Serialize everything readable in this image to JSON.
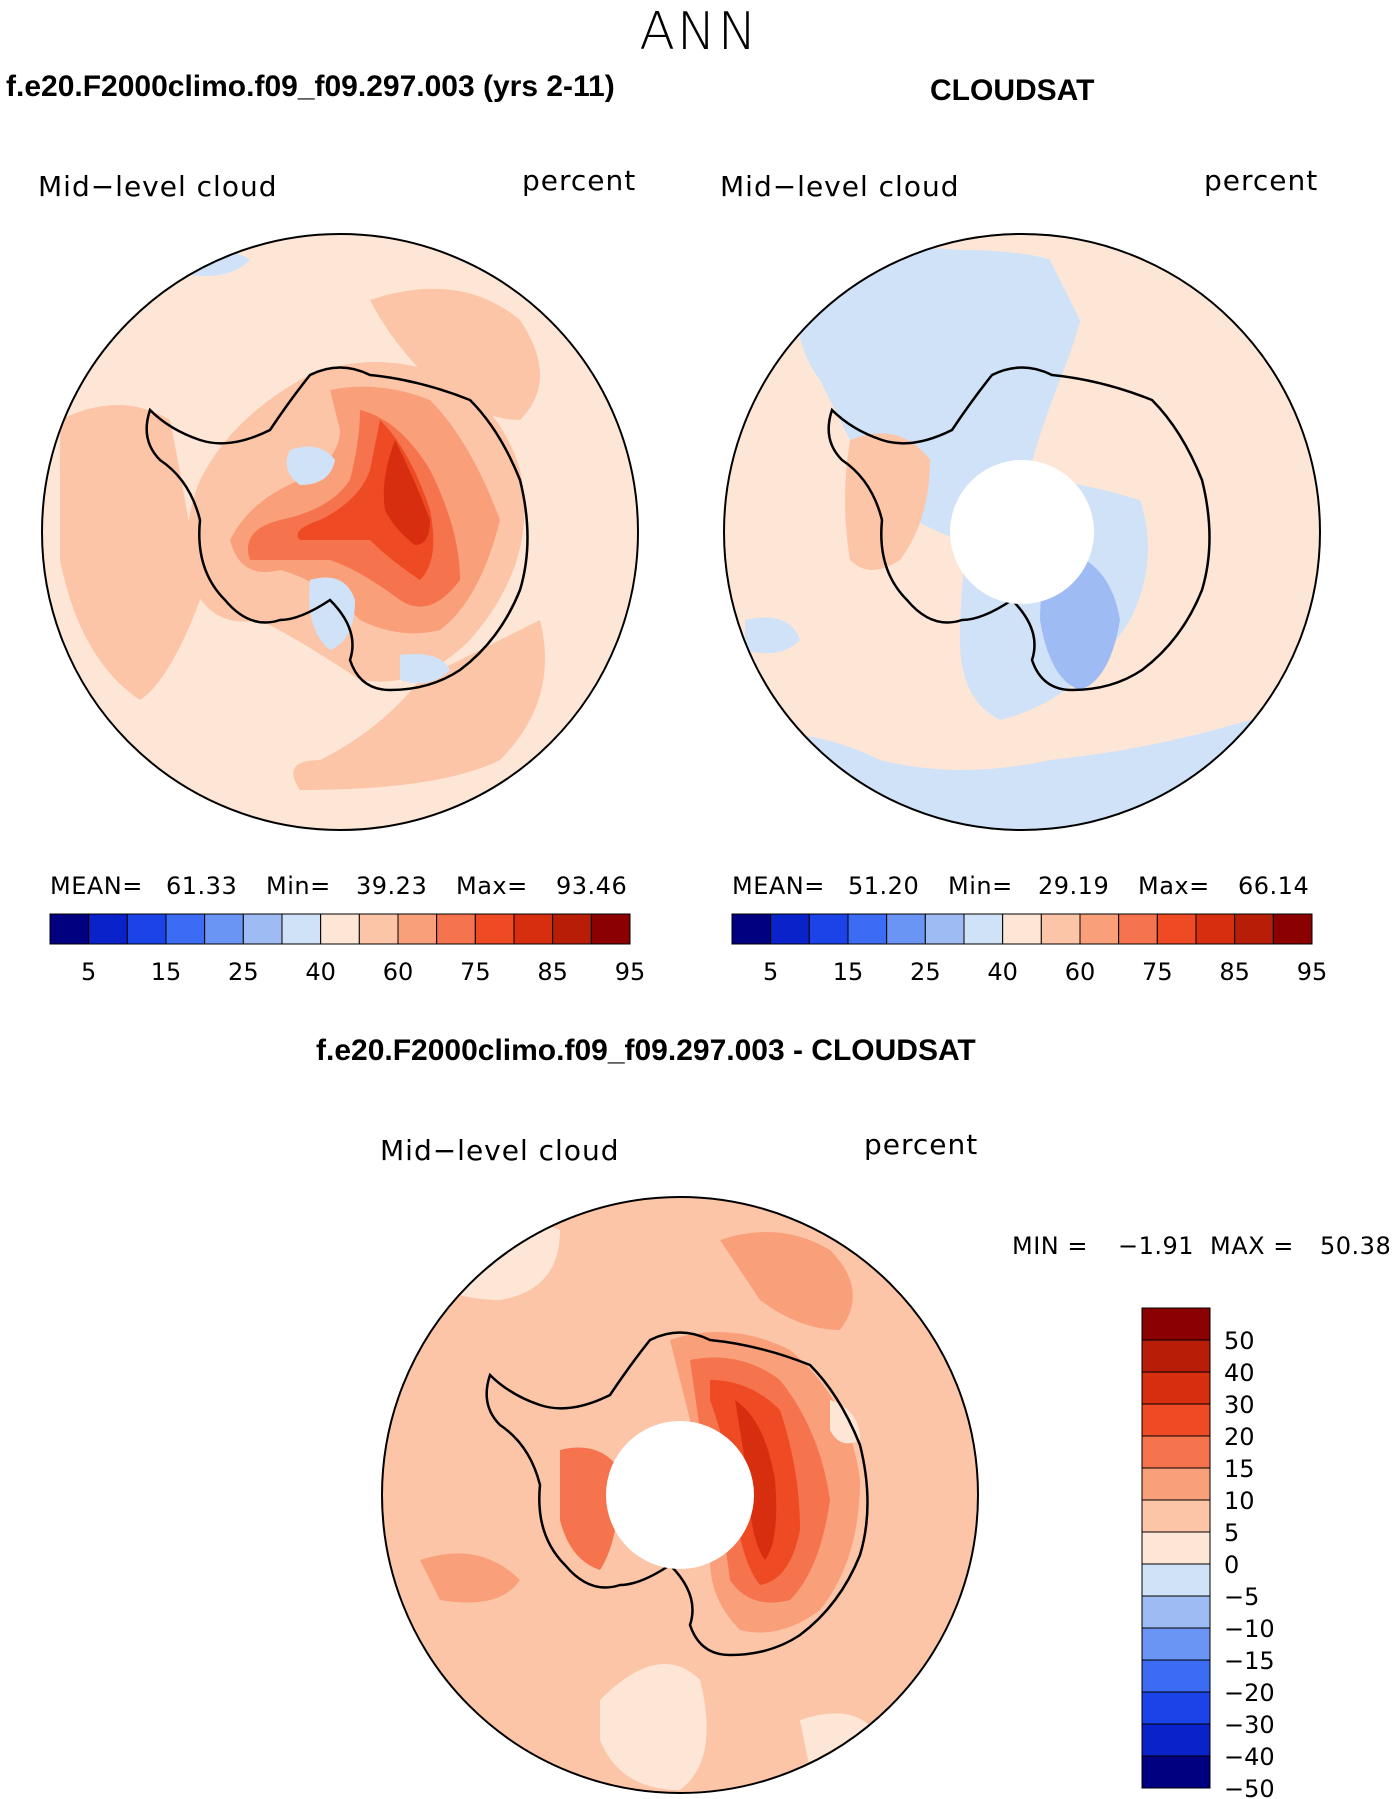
{
  "season": "ANN",
  "panels": [
    {
      "title": "f.e20.F2000climo.f09_f09.297.003 (yrs 2-11)",
      "variable": "Mid−level cloud",
      "units": "percent",
      "stats": {
        "mean_label": "MEAN=",
        "mean": "61.33",
        "min_label": "Min=",
        "min": "39.23",
        "max_label": "Max=",
        "max": "93.46"
      }
    },
    {
      "title": "CLOUDSAT",
      "variable": "Mid−level cloud",
      "units": "percent",
      "stats": {
        "mean_label": "MEAN=",
        "mean": "51.20",
        "min_label": "Min=",
        "min": "29.19",
        "max_label": "Max=",
        "max": "66.14"
      }
    }
  ],
  "colorbar_ticks": [
    "5",
    "15",
    "25",
    "40",
    "60",
    "75",
    "85",
    "95"
  ],
  "colorbar_colors": [
    "#000080",
    "#0a22c9",
    "#1c43e8",
    "#3b6cf3",
    "#6a95f4",
    "#9fbbf4",
    "#cfe2f8",
    "#fde6d6",
    "#fcc5a8",
    "#f9a07a",
    "#f5734d",
    "#ee4a24",
    "#d62e0f",
    "#b81e07",
    "#8b0000"
  ],
  "difference": {
    "title": "f.e20.F2000climo.f09_f09.297.003 - CLOUDSAT",
    "variable": "Mid−level cloud",
    "units": "percent",
    "min_label": "MIN =",
    "min": "−1.91",
    "max_label": "MAX =",
    "max": "50.38",
    "colorbar_ticks": [
      "50",
      "40",
      "30",
      "20",
      "15",
      "10",
      "5",
      "0",
      "−5",
      "−10",
      "−15",
      "−20",
      "−30",
      "−40",
      "−50"
    ],
    "colorbar_colors": [
      "#8b0000",
      "#b81e07",
      "#d62e0f",
      "#ee4a24",
      "#f5734d",
      "#f9a07a",
      "#fcc5a8",
      "#fde6d6",
      "#cfe2f8",
      "#9fbbf4",
      "#6a95f4",
      "#3b6cf3",
      "#1c43e8",
      "#0a22c9",
      "#000080"
    ]
  }
}
